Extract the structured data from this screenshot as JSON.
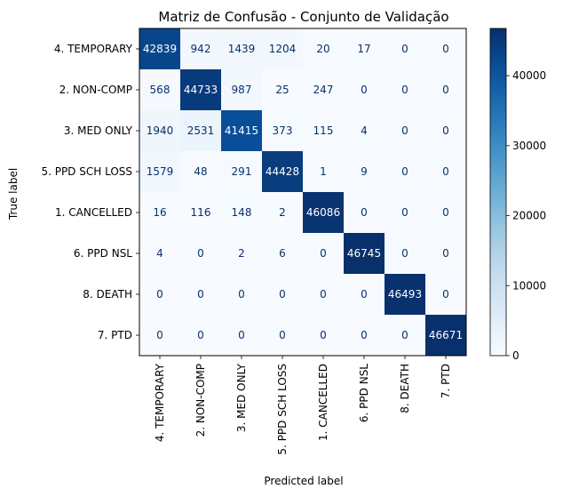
{
  "chart_data": {
    "type": "heatmap",
    "title": "Matriz de Confusão - Conjunto de Validação",
    "xlabel": "Predicted label",
    "ylabel": "True label",
    "row_labels": [
      "4. TEMPORARY",
      "2. NON-COMP",
      "3. MED ONLY",
      "5. PPD SCH LOSS",
      "1. CANCELLED",
      "6. PPD NSL",
      "8. DEATH",
      "7. PTD"
    ],
    "col_labels": [
      "4. TEMPORARY",
      "2. NON-COMP",
      "3. MED ONLY",
      "5. PPD SCH LOSS",
      "1. CANCELLED",
      "6. PPD NSL",
      "8. DEATH",
      "7. PTD"
    ],
    "matrix": [
      [
        42839,
        942,
        1439,
        1204,
        20,
        17,
        0,
        0
      ],
      [
        568,
        44733,
        987,
        25,
        247,
        0,
        0,
        0
      ],
      [
        1940,
        2531,
        41415,
        373,
        115,
        4,
        0,
        0
      ],
      [
        1579,
        48,
        291,
        44428,
        1,
        9,
        0,
        0
      ],
      [
        16,
        116,
        148,
        2,
        46086,
        0,
        0,
        0
      ],
      [
        4,
        0,
        2,
        6,
        0,
        46745,
        0,
        0
      ],
      [
        0,
        0,
        0,
        0,
        0,
        0,
        46493,
        0
      ],
      [
        0,
        0,
        0,
        0,
        0,
        0,
        0,
        46671
      ]
    ],
    "colormap": "Blues",
    "vmin": 0,
    "vmax": 46745,
    "colorbar_ticks": [
      0,
      10000,
      20000,
      30000,
      40000
    ],
    "colorbar_tick_labels": [
      "0",
      "10000",
      "20000",
      "30000",
      "40000"
    ]
  }
}
